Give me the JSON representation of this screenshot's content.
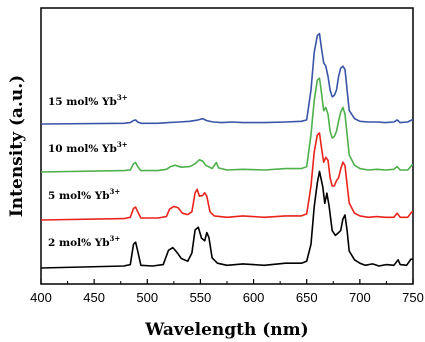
{
  "chart_data": {
    "type": "line",
    "xlabel": "Wavelength (nm)",
    "ylabel": "Intensity (a.u.)",
    "xlim": [
      400,
      750
    ],
    "xticks": [
      400,
      450,
      500,
      550,
      600,
      650,
      700,
      750
    ],
    "yticks": "none",
    "stacked_offset": true,
    "grid": false,
    "series": [
      {
        "label_base": "2 mol% Yb",
        "label_sup": "3+",
        "color": "#000000",
        "offset": 0,
        "points": [
          [
            478,
            0.03
          ],
          [
            484,
            0.05
          ],
          [
            487,
            0.35
          ],
          [
            489,
            0.38
          ],
          [
            491,
            0.25
          ],
          [
            494,
            0.04
          ],
          [
            505,
            0.03
          ],
          [
            515,
            0.05
          ],
          [
            520,
            0.26
          ],
          [
            524,
            0.3
          ],
          [
            528,
            0.23
          ],
          [
            532,
            0.14
          ],
          [
            538,
            0.1
          ],
          [
            542,
            0.22
          ],
          [
            545,
            0.56
          ],
          [
            548,
            0.6
          ],
          [
            551,
            0.44
          ],
          [
            554,
            0.4
          ],
          [
            556,
            0.52
          ],
          [
            558,
            0.45
          ],
          [
            561,
            0.15
          ],
          [
            566,
            0.07
          ],
          [
            575,
            0.04
          ],
          [
            590,
            0.06
          ],
          [
            610,
            0.04
          ],
          [
            630,
            0.07
          ],
          [
            645,
            0.07
          ],
          [
            650,
            0.1
          ],
          [
            654,
            0.35
          ],
          [
            657,
            0.9
          ],
          [
            660,
            1.25
          ],
          [
            662,
            1.42
          ],
          [
            665,
            1.2
          ],
          [
            667,
            0.95
          ],
          [
            669,
            1.1
          ],
          [
            671,
            0.92
          ],
          [
            674,
            0.55
          ],
          [
            677,
            0.48
          ],
          [
            680,
            0.52
          ],
          [
            682,
            0.55
          ],
          [
            684,
            0.72
          ],
          [
            686,
            0.78
          ],
          [
            688,
            0.55
          ],
          [
            690,
            0.25
          ],
          [
            695,
            0.12
          ],
          [
            700,
            0.07
          ],
          [
            705,
            0.04
          ],
          [
            712,
            0.06
          ],
          [
            718,
            0.03
          ],
          [
            725,
            0.05
          ],
          [
            732,
            0.04
          ],
          [
            736,
            0.12
          ],
          [
            738,
            0.05
          ],
          [
            744,
            0.04
          ],
          [
            748,
            0.13
          ]
        ]
      },
      {
        "label_base": "5 mol% Yb",
        "label_sup": "3+",
        "color": "#e8241c",
        "offset": 1,
        "points": [
          [
            478,
            0.02
          ],
          [
            484,
            0.04
          ],
          [
            487,
            0.17
          ],
          [
            489,
            0.19
          ],
          [
            491,
            0.12
          ],
          [
            494,
            0.03
          ],
          [
            510,
            0.03
          ],
          [
            518,
            0.05
          ],
          [
            521,
            0.16
          ],
          [
            525,
            0.2
          ],
          [
            529,
            0.18
          ],
          [
            533,
            0.1
          ],
          [
            538,
            0.08
          ],
          [
            542,
            0.12
          ],
          [
            545,
            0.4
          ],
          [
            547,
            0.45
          ],
          [
            549,
            0.35
          ],
          [
            552,
            0.36
          ],
          [
            554,
            0.4
          ],
          [
            556,
            0.35
          ],
          [
            559,
            0.12
          ],
          [
            563,
            0.06
          ],
          [
            575,
            0.04
          ],
          [
            590,
            0.06
          ],
          [
            610,
            0.04
          ],
          [
            630,
            0.06
          ],
          [
            645,
            0.06
          ],
          [
            650,
            0.09
          ],
          [
            654,
            0.5
          ],
          [
            657,
            1.0
          ],
          [
            660,
            1.25
          ],
          [
            662,
            1.28
          ],
          [
            664,
            1.05
          ],
          [
            666,
            0.85
          ],
          [
            668,
            0.92
          ],
          [
            670,
            0.88
          ],
          [
            672,
            0.62
          ],
          [
            674,
            0.5
          ],
          [
            676,
            0.5
          ],
          [
            678,
            0.58
          ],
          [
            680,
            0.62
          ],
          [
            682,
            0.75
          ],
          [
            684,
            0.85
          ],
          [
            686,
            0.8
          ],
          [
            688,
            0.52
          ],
          [
            690,
            0.25
          ],
          [
            695,
            0.1
          ],
          [
            700,
            0.06
          ],
          [
            708,
            0.04
          ],
          [
            716,
            0.05
          ],
          [
            724,
            0.04
          ],
          [
            732,
            0.04
          ],
          [
            735,
            0.1
          ],
          [
            738,
            0.04
          ],
          [
            745,
            0.04
          ],
          [
            749,
            0.12
          ]
        ]
      },
      {
        "label_base": "10 mol% Yb",
        "label_sup": "3+",
        "color": "#4db04b",
        "offset": 2,
        "points": [
          [
            478,
            0.02
          ],
          [
            484,
            0.03
          ],
          [
            487,
            0.12
          ],
          [
            489,
            0.14
          ],
          [
            491,
            0.08
          ],
          [
            494,
            0.02
          ],
          [
            510,
            0.02
          ],
          [
            518,
            0.04
          ],
          [
            522,
            0.08
          ],
          [
            526,
            0.1
          ],
          [
            532,
            0.07
          ],
          [
            540,
            0.08
          ],
          [
            545,
            0.12
          ],
          [
            549,
            0.18
          ],
          [
            552,
            0.16
          ],
          [
            555,
            0.1
          ],
          [
            561,
            0.05
          ],
          [
            565,
            0.14
          ],
          [
            567,
            0.06
          ],
          [
            575,
            0.03
          ],
          [
            590,
            0.04
          ],
          [
            610,
            0.03
          ],
          [
            630,
            0.05
          ],
          [
            645,
            0.05
          ],
          [
            650,
            0.08
          ],
          [
            654,
            0.55
          ],
          [
            657,
            1.05
          ],
          [
            660,
            1.35
          ],
          [
            662,
            1.38
          ],
          [
            664,
            1.15
          ],
          [
            666,
            0.9
          ],
          [
            668,
            0.95
          ],
          [
            670,
            0.85
          ],
          [
            672,
            0.6
          ],
          [
            674,
            0.5
          ],
          [
            676,
            0.52
          ],
          [
            678,
            0.6
          ],
          [
            680,
            0.75
          ],
          [
            682,
            0.88
          ],
          [
            684,
            0.95
          ],
          [
            686,
            0.85
          ],
          [
            688,
            0.55
          ],
          [
            690,
            0.25
          ],
          [
            695,
            0.1
          ],
          [
            700,
            0.05
          ],
          [
            708,
            0.03
          ],
          [
            716,
            0.04
          ],
          [
            724,
            0.03
          ],
          [
            732,
            0.04
          ],
          [
            735,
            0.08
          ],
          [
            738,
            0.03
          ],
          [
            745,
            0.03
          ],
          [
            749,
            0.1
          ]
        ]
      },
      {
        "label_base": "15 mol% Yb",
        "label_sup": "3+",
        "color": "#3a54a8",
        "offset": 3,
        "points": [
          [
            478,
            0.01
          ],
          [
            484,
            0.02
          ],
          [
            487,
            0.05
          ],
          [
            489,
            0.06
          ],
          [
            491,
            0.03
          ],
          [
            494,
            0.01
          ],
          [
            510,
            0.01
          ],
          [
            520,
            0.02
          ],
          [
            530,
            0.03
          ],
          [
            540,
            0.04
          ],
          [
            548,
            0.06
          ],
          [
            552,
            0.08
          ],
          [
            556,
            0.05
          ],
          [
            562,
            0.03
          ],
          [
            570,
            0.02
          ],
          [
            580,
            0.03
          ],
          [
            590,
            0.02
          ],
          [
            610,
            0.02
          ],
          [
            630,
            0.03
          ],
          [
            645,
            0.04
          ],
          [
            650,
            0.06
          ],
          [
            654,
            0.5
          ],
          [
            657,
            1.05
          ],
          [
            660,
            1.3
          ],
          [
            662,
            1.33
          ],
          [
            664,
            1.1
          ],
          [
            666,
            0.9
          ],
          [
            668,
            0.85
          ],
          [
            670,
            0.7
          ],
          [
            672,
            0.5
          ],
          [
            674,
            0.4
          ],
          [
            676,
            0.42
          ],
          [
            678,
            0.5
          ],
          [
            680,
            0.7
          ],
          [
            682,
            0.82
          ],
          [
            684,
            0.85
          ],
          [
            686,
            0.8
          ],
          [
            688,
            0.5
          ],
          [
            690,
            0.2
          ],
          [
            695,
            0.08
          ],
          [
            700,
            0.04
          ],
          [
            708,
            0.03
          ],
          [
            716,
            0.03
          ],
          [
            724,
            0.02
          ],
          [
            732,
            0.03
          ],
          [
            735,
            0.06
          ],
          [
            738,
            0.02
          ],
          [
            745,
            0.03
          ],
          [
            749,
            0.06
          ]
        ]
      }
    ]
  }
}
